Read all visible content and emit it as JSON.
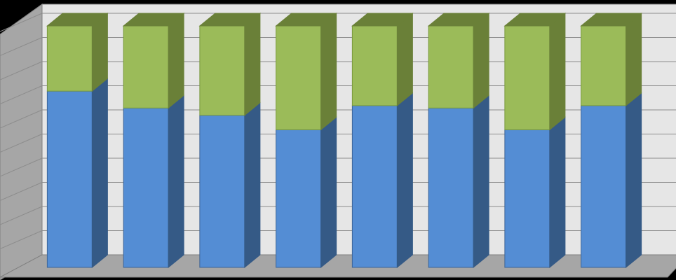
{
  "chart_data": {
    "type": "bar",
    "stacked": true,
    "percent_stacked": true,
    "three_d": true,
    "grid": true,
    "legend": "none",
    "title": "",
    "xlabel": "",
    "ylabel": "",
    "ylim": [
      0,
      100
    ],
    "categories": [
      "",
      "",
      "",
      "",
      "",
      "",
      "",
      ""
    ],
    "series": [
      {
        "values": [
          73,
          66,
          63,
          57,
          67,
          66,
          57,
          67
        ],
        "color": "#548DD4"
      },
      {
        "values": [
          27,
          34,
          37,
          43,
          33,
          34,
          43,
          33
        ],
        "color": "#9BBB59"
      }
    ],
    "colors": {
      "background": "#000000",
      "back_wall": "#E6E6E6",
      "side_wall": "#A6A6A6",
      "floor": "#A6A6A6",
      "gridline": "#8C8C8C",
      "series_side": [
        "#355A86",
        "#6A8038"
      ],
      "series_top": [
        "#6A8038",
        "#6A8038"
      ],
      "series_outline": [
        "#3C6496",
        "#7A9A3C"
      ]
    }
  }
}
